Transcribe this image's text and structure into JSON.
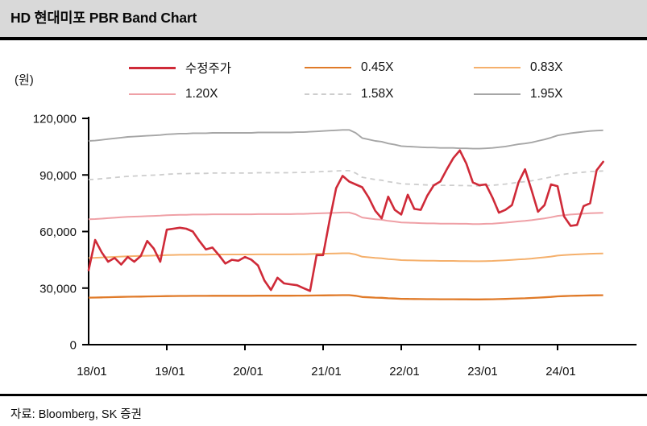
{
  "header": {
    "title": "HD 현대미포 PBR Band Chart"
  },
  "footer": {
    "source": "자료: Bloomberg, SK 증권"
  },
  "chart_data": {
    "type": "line",
    "title": "HD 현대미포 PBR Band Chart",
    "unit_label": "(원)",
    "ylim": [
      0,
      120000
    ],
    "y_ticks": [
      0,
      30000,
      60000,
      90000,
      120000
    ],
    "x_interval": "monthly",
    "x_start": "18/01",
    "x_end": "24/08",
    "x_tick_months": [
      0,
      12,
      24,
      36,
      48,
      60,
      72
    ],
    "x_tick_labels": [
      "18/01",
      "19/01",
      "20/01",
      "21/01",
      "22/01",
      "23/01",
      "24/01"
    ],
    "grid": false,
    "legend_position": "top",
    "series": [
      {
        "name": "수정주가",
        "role": "price",
        "color": "#cf2a38",
        "stroke_width": 2.6,
        "dash": null,
        "values": [
          39500,
          55500,
          49000,
          44000,
          46000,
          42500,
          46500,
          44000,
          47000,
          55000,
          51000,
          44000,
          61000,
          61500,
          62000,
          61500,
          60000,
          55000,
          50500,
          51500,
          47500,
          43000,
          45000,
          44500,
          46500,
          45000,
          42000,
          34000,
          29000,
          35500,
          32500,
          32000,
          31500,
          30000,
          28500,
          47500,
          47500,
          66000,
          83000,
          89500,
          86500,
          85000,
          83500,
          78000,
          71000,
          67000,
          78500,
          71500,
          69000,
          79500,
          72000,
          71500,
          79000,
          84500,
          86500,
          93000,
          99000,
          103000,
          96000,
          86000,
          84500,
          85000,
          78000,
          70000,
          71500,
          74000,
          86000,
          93000,
          82000,
          70500,
          74000,
          85000,
          84000,
          68000,
          63000,
          63500,
          73500,
          75000,
          92500,
          97000
        ]
      },
      {
        "name": "0.45X",
        "role": "band",
        "multiple": 0.45,
        "color": "#e07a28",
        "stroke_width": 2.3,
        "dash": null
      },
      {
        "name": "0.83X",
        "role": "band",
        "multiple": 0.83,
        "color": "#f5b06c",
        "stroke_width": 2.0,
        "dash": null
      },
      {
        "name": "1.20X",
        "role": "band",
        "multiple": 1.2,
        "color": "#efa0a6",
        "stroke_width": 2.0,
        "dash": null
      },
      {
        "name": "1.58X",
        "role": "band",
        "multiple": 1.58,
        "color": "#cdcdcd",
        "stroke_width": 1.8,
        "dash": "6 5"
      },
      {
        "name": "1.95X",
        "role": "band",
        "multiple": 1.95,
        "color": "#a6a6a6",
        "stroke_width": 1.9,
        "dash": null
      }
    ],
    "bps_values": [
      55400,
      55500,
      55700,
      55900,
      56100,
      56300,
      56500,
      56600,
      56700,
      56800,
      56900,
      57000,
      57200,
      57300,
      57400,
      57400,
      57500,
      57500,
      57500,
      57600,
      57600,
      57600,
      57600,
      57600,
      57600,
      57600,
      57700,
      57700,
      57700,
      57700,
      57700,
      57700,
      57800,
      57800,
      57900,
      58000,
      58100,
      58200,
      58300,
      58400,
      58400,
      57600,
      56200,
      55800,
      55400,
      55200,
      54700,
      54400,
      54000,
      53900,
      53800,
      53700,
      53600,
      53600,
      53500,
      53500,
      53500,
      53400,
      53400,
      53300,
      53300,
      53400,
      53500,
      53700,
      53900,
      54200,
      54500,
      54700,
      55000,
      55400,
      55800,
      56300,
      56900,
      57200,
      57500,
      57700,
      57900,
      58100,
      58200,
      58300
    ]
  }
}
